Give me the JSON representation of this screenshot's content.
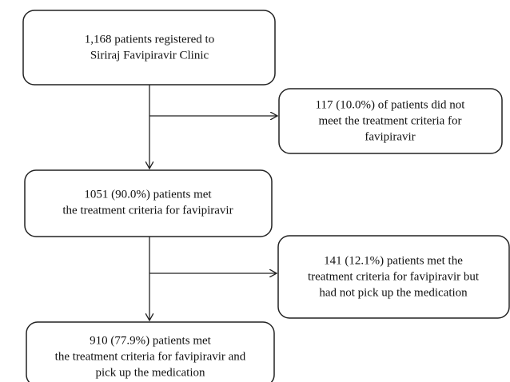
{
  "nodes": [
    {
      "lines": [
        "1,168 patients registered to",
        "Siriraj Favipiravir Clinic"
      ]
    },
    {
      "lines": [
        "117 (10.0%) of patients did not",
        "meet the treatment criteria for",
        "favipiravir"
      ]
    },
    {
      "lines": [
        "1051 (90.0%) patients met",
        "the treatment criteria for favipiravir"
      ]
    },
    {
      "lines": [
        "141 (12.1%) patients met the",
        "treatment criteria for favipiravir but",
        "had not pick up the medication"
      ]
    },
    {
      "lines": [
        "910 (77.9%) patients met",
        "the treatment criteria for favipiravir and",
        "pick up the medication"
      ]
    }
  ]
}
